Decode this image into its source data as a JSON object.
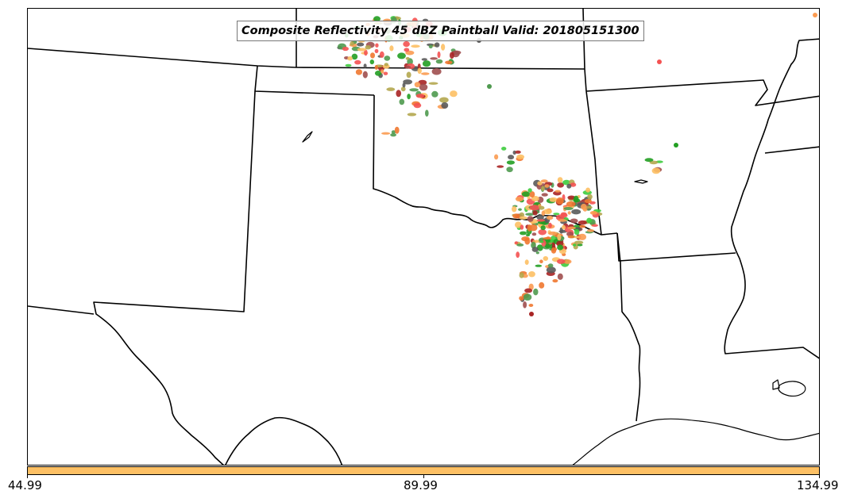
{
  "title": "Composite Reflectivity 45 dBZ Paintball Valid: 201805151300",
  "colorbar": {
    "color": "#fdc064",
    "ticks": [
      "44.99",
      "89.99",
      "134.99"
    ]
  },
  "palette": {
    "boundary": "#000000",
    "echo_colors": [
      "#f45252",
      "#fb9b51",
      "#229f22",
      "#4f9a4f",
      "#a82424",
      "#5a5a5a",
      "#a04f4f",
      "#b4a74f",
      "#fdc064",
      "#3ecc3e",
      "#f07830"
    ]
  }
}
